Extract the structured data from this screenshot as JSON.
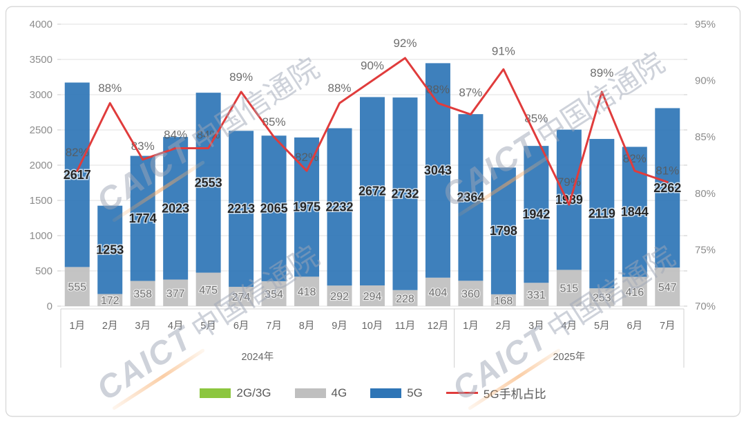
{
  "watermark": {
    "latin": "CAICT",
    "cjk": "中国信通院"
  },
  "legend": [
    {
      "label": "2G/3G",
      "color": "#8CC63F",
      "type": "box"
    },
    {
      "label": "4G",
      "color": "#BFBFBF",
      "type": "box"
    },
    {
      "label": "5G",
      "color": "#2E75B6",
      "type": "box"
    },
    {
      "label": "5G手机占比",
      "color": "#E03C3C",
      "type": "line"
    }
  ],
  "chart_data": {
    "type": "bar",
    "subtype": "stacked-bars-with-percent-line",
    "categories": [
      "1月",
      "2月",
      "3月",
      "4月",
      "5月",
      "6月",
      "7月",
      "8月",
      "9月",
      "10月",
      "11月",
      "12月",
      "1月",
      "2月",
      "3月",
      "4月",
      "5月",
      "6月",
      "7月"
    ],
    "category_groups": [
      {
        "label": "2024年",
        "count": 12
      },
      {
        "label": "2025年",
        "count": 7
      }
    ],
    "series": [
      {
        "name": "2G/3G",
        "color": "#8CC63F",
        "values": [
          0,
          0,
          0,
          0,
          0,
          0,
          0,
          0,
          0,
          0,
          0,
          0,
          0,
          0,
          0,
          0,
          0,
          0,
          0
        ],
        "labels_shown": false
      },
      {
        "name": "4G",
        "color": "#BFBFBF",
        "values": [
          555,
          172,
          358,
          377,
          475,
          274,
          354,
          418,
          292,
          294,
          228,
          404,
          360,
          168,
          331,
          515,
          253,
          416,
          547
        ]
      },
      {
        "name": "5G",
        "color": "#2E75B6",
        "values": [
          2617,
          1253,
          1774,
          2023,
          2553,
          2213,
          2065,
          1975,
          2232,
          2672,
          2732,
          3043,
          2364,
          1798,
          1942,
          1989,
          2119,
          1844,
          2262
        ]
      }
    ],
    "line": {
      "name": "5G手机占比",
      "color": "#E03C3C",
      "unit": "%",
      "values": [
        82,
        88,
        83,
        84,
        84,
        89,
        85,
        82,
        88,
        90,
        92,
        88,
        87,
        91,
        85,
        79,
        89,
        82,
        81
      ]
    },
    "left_axis": {
      "min": 0,
      "max": 4000,
      "step": 500,
      "tick_labels": [
        "0",
        "500",
        "1000",
        "1500",
        "2000",
        "2500",
        "3000",
        "3500",
        "4000"
      ]
    },
    "right_axis": {
      "min": 70,
      "max": 95,
      "step": 5,
      "tick_labels": [
        "70%",
        "75%",
        "80%",
        "85%",
        "90%",
        "95%"
      ]
    },
    "grid": true,
    "legend_position": "bottom",
    "pct_label_dy": [
      -33,
      -28,
      -26,
      -26,
      -26,
      -28,
      -28,
      -26,
      -28,
      -28,
      -28,
      -26,
      -38,
      -33,
      -33,
      -39,
      -34,
      -24,
      -23
    ]
  }
}
